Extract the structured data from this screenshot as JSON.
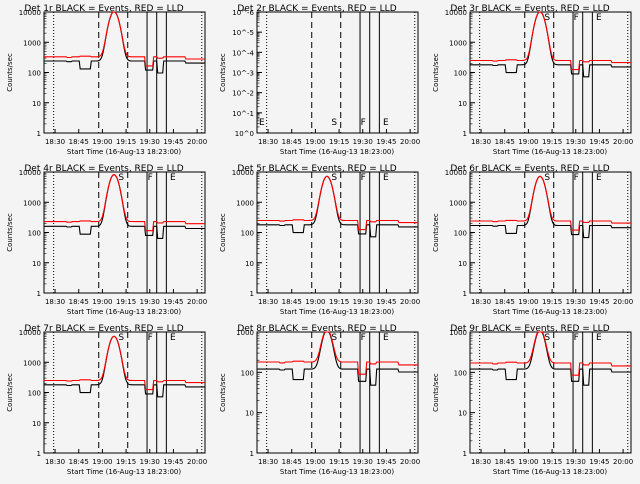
{
  "chart_data": [
    {
      "type": "line",
      "title": "Det 1r BLACK = Events, RED = LLD",
      "xlabel": "Start Time (16-Aug-13 18:23:00)",
      "ylabel": "Counts/sec",
      "yscale": "log",
      "ylim": [
        1,
        10000
      ],
      "x_ticks": [
        "18:30",
        "18:45",
        "19:00",
        "19:15",
        "19:30",
        "19:45",
        "20:00"
      ],
      "y_ticks": [
        "1",
        "10",
        "100",
        "1000",
        "10000"
      ],
      "markers": [],
      "series": [
        {
          "name": "Events",
          "color": "#000000",
          "profile": "sharp"
        },
        {
          "name": "LLD",
          "color": "#ff0000",
          "profile": "sharp"
        }
      ],
      "events_level": 240,
      "lld_level": 330,
      "peak": 10000
    },
    {
      "type": "line",
      "title": "Det 2r BLACK = Events, RED = LLD",
      "xlabel": "Start Time (16-Aug-13 18:23:00)",
      "ylabel": "Counts/sec",
      "yscale": "log",
      "ylim": [
        1,
        1e-06
      ],
      "x_ticks": [
        "18:30",
        "18:45",
        "19:00",
        "19:15",
        "19:30",
        "19:45",
        "20:00"
      ],
      "y_ticks": [
        "10^0",
        "10^-1",
        "10^-2",
        "10^-3",
        "10^-4",
        "10^-5",
        "10^-6"
      ],
      "markers": [
        "E",
        "S",
        "F",
        "E"
      ],
      "series": [],
      "events_level": 0,
      "lld_level": 0,
      "peak": 0
    },
    {
      "type": "line",
      "title": "Det 3r BLACK = Events, RED = LLD",
      "xlabel": "Start Time (16-Aug-13 18:23:00)",
      "ylabel": "Counts/sec",
      "yscale": "log",
      "ylim": [
        1,
        10000
      ],
      "x_ticks": [
        "18:30",
        "18:45",
        "19:00",
        "19:15",
        "19:30",
        "19:45",
        "20:00"
      ],
      "y_ticks": [
        "1",
        "10",
        "100",
        "1000",
        "10000"
      ],
      "markers": [
        "S",
        "F",
        "E"
      ],
      "series": [
        {
          "name": "Events",
          "color": "#000000",
          "profile": "flat"
        },
        {
          "name": "LLD",
          "color": "#ff0000",
          "profile": "flat"
        }
      ],
      "events_level": 180,
      "lld_level": 250,
      "peak": 10000
    },
    {
      "type": "line",
      "title": "Det 4r BLACK = Events, RED = LLD",
      "xlabel": "Start Time (16-Aug-13 18:23:00)",
      "ylabel": "Counts/sec",
      "yscale": "log",
      "ylim": [
        1,
        10000
      ],
      "x_ticks": [
        "18:30",
        "18:45",
        "19:00",
        "19:15",
        "19:30",
        "19:45",
        "20:00"
      ],
      "y_ticks": [
        "1",
        "10",
        "100",
        "1000",
        "10000"
      ],
      "markers": [
        "S",
        "F",
        "E"
      ],
      "series": [
        {
          "name": "Events",
          "color": "#000000",
          "profile": "peak"
        },
        {
          "name": "LLD",
          "color": "#ff0000",
          "profile": "peak"
        }
      ],
      "events_level": 160,
      "lld_level": 230,
      "peak": 8000
    },
    {
      "type": "line",
      "title": "Det 5r BLACK = Events, RED = LLD",
      "xlabel": "Start Time (16-Aug-13 18:23:00)",
      "ylabel": "Counts/sec",
      "yscale": "log",
      "ylim": [
        1,
        10000
      ],
      "x_ticks": [
        "18:30",
        "18:45",
        "19:00",
        "19:15",
        "19:30",
        "19:45",
        "20:00"
      ],
      "y_ticks": [
        "1",
        "10",
        "100",
        "1000",
        "10000"
      ],
      "markers": [
        "S",
        "F",
        "E"
      ],
      "series": [
        {
          "name": "Events",
          "color": "#000000",
          "profile": "peak"
        },
        {
          "name": "LLD",
          "color": "#ff0000",
          "profile": "peak"
        }
      ],
      "events_level": 180,
      "lld_level": 250,
      "peak": 7000
    },
    {
      "type": "line",
      "title": "Det 6r BLACK = Events, RED = LLD",
      "xlabel": "Start Time (16-Aug-13 18:23:00)",
      "ylabel": "Counts/sec",
      "yscale": "log",
      "ylim": [
        1,
        10000
      ],
      "x_ticks": [
        "18:30",
        "18:45",
        "19:00",
        "19:15",
        "19:30",
        "19:45",
        "20:00"
      ],
      "y_ticks": [
        "1",
        "10",
        "100",
        "1000",
        "10000"
      ],
      "markers": [
        "S",
        "F",
        "E"
      ],
      "series": [
        {
          "name": "Events",
          "color": "#000000",
          "profile": "peak"
        },
        {
          "name": "LLD",
          "color": "#ff0000",
          "profile": "peak"
        }
      ],
      "events_level": 170,
      "lld_level": 240,
      "peak": 7000
    },
    {
      "type": "line",
      "title": "Det 7r BLACK = Events, RED = LLD",
      "xlabel": "Start Time (16-Aug-13 18:23:00)",
      "ylabel": "Counts/sec",
      "yscale": "log",
      "ylim": [
        1,
        10000
      ],
      "x_ticks": [
        "18:30",
        "18:45",
        "19:00",
        "19:15",
        "19:30",
        "19:45",
        "20:00"
      ],
      "y_ticks": [
        "1",
        "10",
        "100",
        "1000",
        "10000"
      ],
      "markers": [
        "S",
        "F",
        "E"
      ],
      "series": [
        {
          "name": "Events",
          "color": "#000000",
          "profile": "peak"
        },
        {
          "name": "LLD",
          "color": "#ff0000",
          "profile": "peak"
        }
      ],
      "events_level": 180,
      "lld_level": 250,
      "peak": 7000
    },
    {
      "type": "line",
      "title": "Det 8r BLACK = Events, RED = LLD",
      "xlabel": "Start Time (16-Aug-13 18:23:00)",
      "ylabel": "Counts/sec",
      "yscale": "log",
      "ylim": [
        1,
        1000
      ],
      "x_ticks": [
        "18:30",
        "18:45",
        "19:00",
        "19:15",
        "19:30",
        "19:45",
        "20:00"
      ],
      "y_ticks": [
        "1",
        "10",
        "100",
        "1000"
      ],
      "markers": [
        "S",
        "F",
        "E"
      ],
      "series": [
        {
          "name": "Events",
          "color": "#000000",
          "profile": "flat"
        },
        {
          "name": "LLD",
          "color": "#ff0000",
          "profile": "flat"
        }
      ],
      "events_level": 120,
      "lld_level": 180,
      "peak": 1000
    },
    {
      "type": "line",
      "title": "Det 9r BLACK = Events, RED = LLD",
      "xlabel": "Start Time (16-Aug-13 18:23:00)",
      "ylabel": "Counts/sec",
      "yscale": "log",
      "ylim": [
        1,
        1000
      ],
      "x_ticks": [
        "18:30",
        "18:45",
        "19:00",
        "19:15",
        "19:30",
        "19:45",
        "20:00"
      ],
      "y_ticks": [
        "1",
        "10",
        "100",
        "1000"
      ],
      "markers": [
        "S",
        "F",
        "E"
      ],
      "series": [
        {
          "name": "Events",
          "color": "#000000",
          "profile": "flat"
        },
        {
          "name": "LLD",
          "color": "#ff0000",
          "profile": "flat"
        }
      ],
      "events_level": 120,
      "lld_level": 170,
      "peak": 1000
    }
  ]
}
